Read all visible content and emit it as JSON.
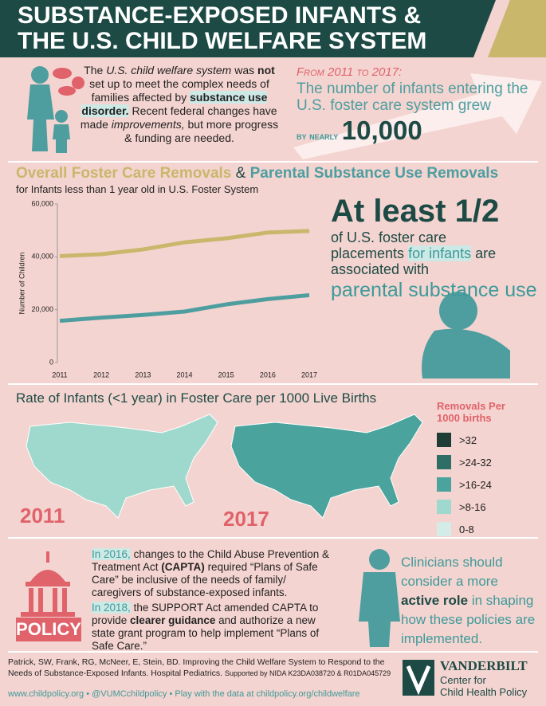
{
  "header": {
    "line1": "SUBSTANCE-EXPOSED INFANTS &",
    "line2": "THE U.S. CHILD WELFARE SYSTEM"
  },
  "intro": [
    "The",
    "U.S. child welfare system",
    "was",
    "not",
    "set up to meet the complex needs of families affected by",
    "substance use disorder.",
    "Recent federal changes have made",
    "improvements,",
    "but more progress & funding are needed."
  ],
  "stat": {
    "lead": "From 2011 to 2017:",
    "text": "The number of infants entering the U.S. foster care system grew",
    "qualifier": "by nearly",
    "number": "10,000"
  },
  "chart_data": {
    "type": "line",
    "title_join": "&",
    "subtitle": "for Infants less than 1 year old in U.S. Foster System",
    "y_label": "Number of Children",
    "categories": [
      "2011",
      "2012",
      "2013",
      "2014",
      "2015",
      "2016",
      "2017"
    ],
    "series": [
      {
        "name": "Overall Foster Care Removals",
        "color": "#c9b76c",
        "values": [
          40300,
          41000,
          42800,
          45500,
          47000,
          49200,
          49800
        ]
      },
      {
        "name": "Parental Substance Use Removals",
        "color": "#4e9ea0",
        "values": [
          15800,
          17000,
          18000,
          19300,
          22000,
          24000,
          25500
        ]
      }
    ],
    "ylim": [
      0,
      60000
    ],
    "yticks": [
      0,
      {
        "value": 20000,
        "label": "20,000"
      },
      {
        "value": 40000,
        "label": "40,000"
      },
      {
        "value": 60000,
        "label": "60,000"
      }
    ]
  },
  "claim": {
    "headline": "At least 1/2",
    "text1": "of U.S. foster care placements",
    "highlight": "for infants",
    "text2": "are associated with",
    "emphasis": "parental substance use"
  },
  "maps": {
    "title": "Rate of Infants (<1 year) in Foster Care per 1000 Live Births",
    "labels": [
      "2011",
      "2017"
    ],
    "legend": {
      "title": "Removals Per 1000 births",
      "items": [
        {
          "label": ">32",
          "color": "#1d3d36"
        },
        {
          "label": ">24-32",
          "color": "#2f6e66"
        },
        {
          "label": ">16-24",
          "color": "#4aa39c"
        },
        {
          "label": ">8-16",
          "color": "#9fd8cc"
        },
        {
          "label": "0-8",
          "color": "#d3ece8"
        }
      ]
    }
  },
  "policy": {
    "badge": "POLICY",
    "p1": [
      "In 2016,",
      "changes to the Child Abuse Prevention & Treatment Act",
      "(CAPTA)",
      "required “Plans of Safe Care” be inclusive of the needs of family/ caregivers of substance-exposed infants."
    ],
    "p2": [
      "In 2018,",
      "the SUPPORT Act amended CAPTA to provide",
      "clearer guidance",
      "and authorize a new state grant program to help implement “Plans of Safe Care.”"
    ]
  },
  "clinicians": [
    "Clinicians should consider a more",
    "active role",
    "in shaping how these policies are implemented."
  ],
  "footer": {
    "citation": "Patrick, SW, Frank, RG, McNeer, E, Stein, BD. Improving the Child Welfare System to Respond to the Needs of Substance-Exposed Infants. Hospital Pediatrics.",
    "support": "Supported by NIDA K23DA038720 & R01DA045729",
    "links": "www.childpolicy.org • @VUMCchildpolicy • Play with the data at childpolicy.org/childwelfare",
    "logo": {
      "name": "VANDERBILT",
      "line1": "Center for",
      "line2": "Child Health Policy"
    }
  }
}
